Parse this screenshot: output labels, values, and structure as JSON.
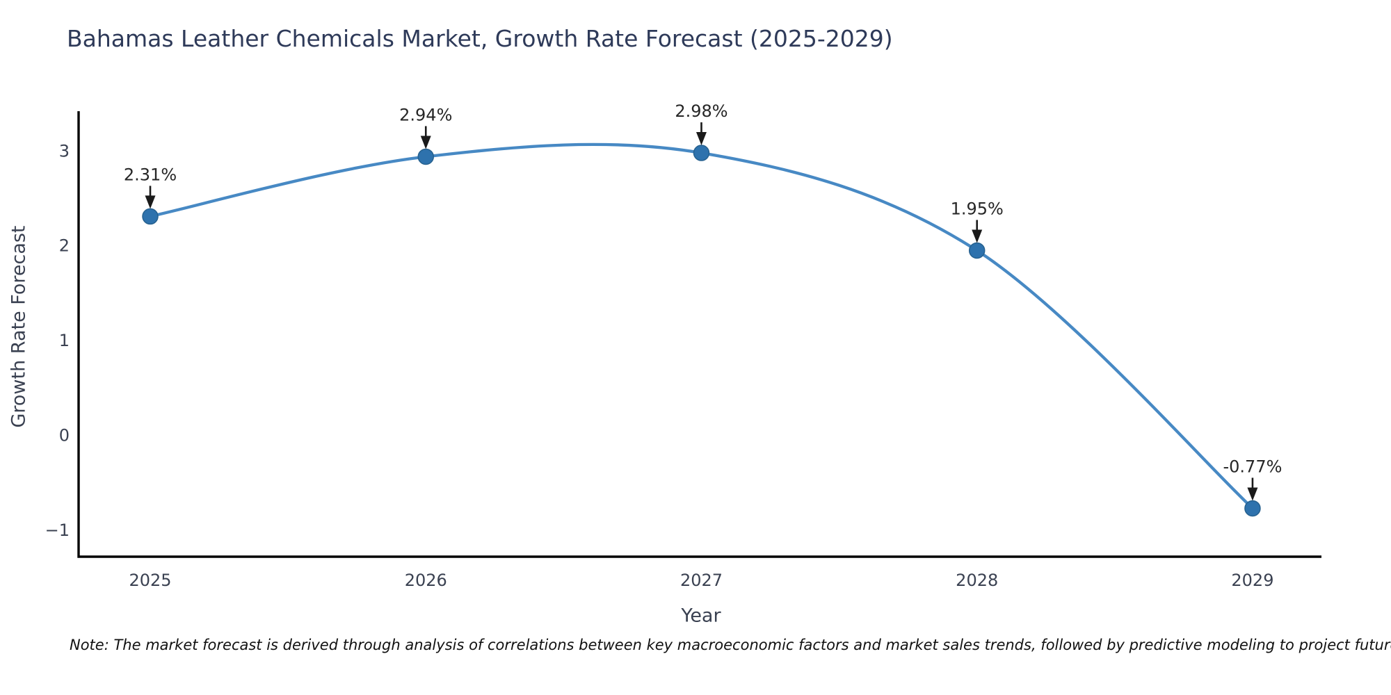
{
  "chart_data": {
    "type": "line",
    "title": "Bahamas Leather Chemicals Market, Growth Rate Forecast (2025-2029)",
    "xlabel": "Year",
    "ylabel": "Growth Rate Forecast",
    "x": [
      2025,
      2026,
      2027,
      2028,
      2029
    ],
    "values": [
      2.31,
      2.94,
      2.98,
      1.95,
      -0.77
    ],
    "point_labels": [
      "2.31%",
      "2.94%",
      "2.98%",
      "1.95%",
      "-0.77%"
    ],
    "xtick_labels": [
      "2025",
      "2026",
      "2027",
      "2028",
      "2029"
    ],
    "ytick_values": [
      -1,
      0,
      1,
      2,
      3
    ],
    "ytick_labels": [
      "−1",
      "0",
      "1",
      "2",
      "3"
    ],
    "xlim": [
      2024.74,
      2029.25
    ],
    "ylim": [
      -1.28,
      3.42
    ],
    "smooth": true,
    "grid": false,
    "legend": false,
    "colors": {
      "line": "#4789c4",
      "marker": "#2e72ad",
      "marker_edge": "#26618f",
      "arrow": "#1a1a1a",
      "annotation_text": "#262626",
      "axis_spine": "#000000",
      "tick_text": "#3a4151",
      "title_text": "#2e3a59"
    },
    "note": "Note: The market forecast is derived through analysis of correlations between key macroeconomic factors and market sales trends, followed by predictive modeling to project future sales"
  }
}
